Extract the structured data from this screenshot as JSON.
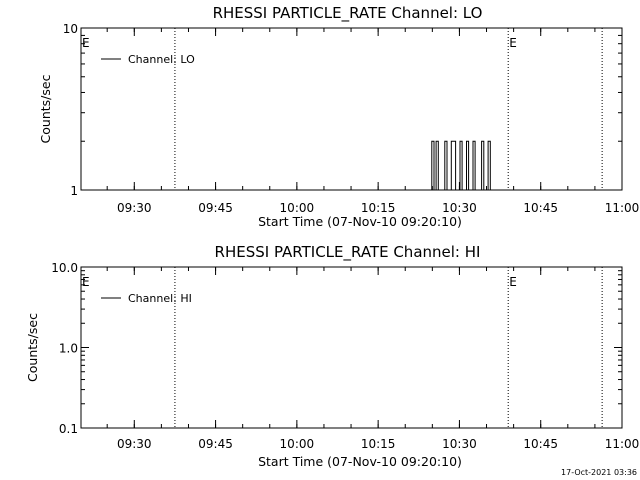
{
  "chart_data": [
    {
      "type": "line",
      "title": "RHESSI PARTICLE_RATE Channel: LO",
      "xlabel": "Start Time (07-Nov-10 09:20:10)",
      "ylabel": "Counts/sec",
      "yscale": "log",
      "ylim": [
        1,
        10
      ],
      "y_ticks": [
        "1",
        "10"
      ],
      "xlim": [
        "09:20:10",
        "11:00:00"
      ],
      "x_ticks": [
        "09:30",
        "09:45",
        "10:00",
        "10:15",
        "10:30",
        "10:45",
        "11:00"
      ],
      "legend": "top-left",
      "series": [
        {
          "name": "Channel: LO",
          "x": [
            "10:24:30",
            "10:24:54",
            "10:25:18",
            "10:25:42",
            "10:26:06",
            "10:26:30",
            "10:26:54",
            "10:27:18",
            "10:27:42",
            "10:28:06",
            "10:28:30",
            "10:28:54",
            "10:29:18",
            "10:29:42",
            "10:30:06",
            "10:30:30",
            "10:30:54",
            "10:31:18",
            "10:31:42",
            "10:32:06",
            "10:32:30",
            "10:32:54",
            "10:33:18",
            "10:33:42",
            "10:34:06",
            "10:34:30",
            "10:34:54",
            "10:35:18",
            "10:35:42",
            "10:36:06"
          ],
          "y": [
            1,
            2,
            1,
            2,
            1,
            1,
            1,
            2,
            1,
            1,
            2,
            2,
            1,
            1,
            2,
            1,
            1,
            2,
            1,
            1,
            2,
            1,
            1,
            1,
            2,
            1,
            1,
            2,
            1,
            1
          ]
        }
      ],
      "event_lines": [
        "09:37:30",
        "10:39:00",
        "10:56:20"
      ],
      "event_markers": [
        {
          "x": "09:20:10",
          "label": "E"
        },
        {
          "x": "10:39:00",
          "label": "E"
        }
      ]
    },
    {
      "type": "line",
      "title": "RHESSI PARTICLE_RATE Channel: HI",
      "xlabel": "Start Time (07-Nov-10 09:20:10)",
      "ylabel": "Counts/sec",
      "yscale": "log",
      "ylim": [
        0.1,
        10
      ],
      "y_ticks": [
        "0.1",
        "1.0",
        "10.0"
      ],
      "xlim": [
        "09:20:10",
        "11:00:00"
      ],
      "x_ticks": [
        "09:30",
        "09:45",
        "10:00",
        "10:15",
        "10:30",
        "10:45",
        "11:00"
      ],
      "legend": "top-left",
      "series": [
        {
          "name": "Channel: HI",
          "x": [],
          "y": []
        }
      ],
      "event_lines": [
        "09:37:30",
        "10:39:00",
        "10:56:20"
      ],
      "event_markers": [
        {
          "x": "09:20:10",
          "label": "E"
        },
        {
          "x": "10:39:00",
          "label": "E"
        }
      ]
    }
  ],
  "footer": {
    "timestamp": "17-Oct-2021 03:36"
  }
}
